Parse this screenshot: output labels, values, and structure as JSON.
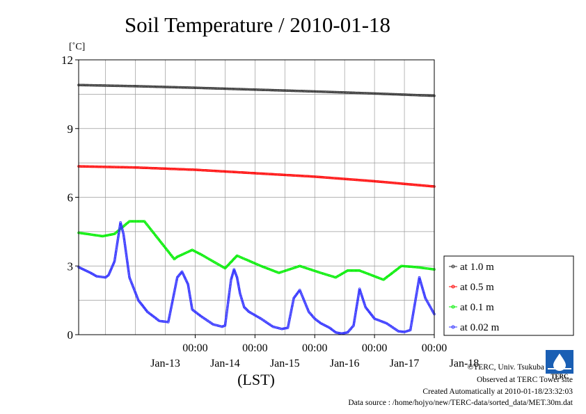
{
  "page_title": "Soil Temperature / 2010-01-18",
  "chart_data": {
    "type": "line",
    "title": "Soil Temperature / 2010-01-18",
    "ylabel": "[˚C]",
    "xlabel": "(LST)",
    "xlim": [
      -1.95,
      4.0
    ],
    "ylim": [
      0,
      12
    ],
    "yticks": [
      "0",
      "3",
      "6",
      "9",
      "12"
    ],
    "ytick_values": [
      0,
      3,
      6,
      9,
      12
    ],
    "xtick_time_labels": [
      "00:00",
      "00:00",
      "00:00",
      "00:00",
      "00:00"
    ],
    "xtick_date_labels": [
      "Jan-13",
      "Jan-14",
      "Jan-15",
      "Jan-16",
      "Jan-17",
      "Jan-18"
    ],
    "grid": true,
    "legend_position": "right",
    "series": [
      {
        "name": "at 1.0 m",
        "color": "#333333",
        "x": [
          -1.95,
          -1.0,
          0.0,
          1.0,
          2.0,
          3.0,
          4.0
        ],
        "y": [
          10.9,
          10.85,
          10.78,
          10.7,
          10.62,
          10.53,
          10.43
        ]
      },
      {
        "name": "at 0.5 m",
        "color": "#ff0000",
        "x": [
          -1.95,
          -1.0,
          0.0,
          1.0,
          2.0,
          3.0,
          4.0
        ],
        "y": [
          7.35,
          7.3,
          7.2,
          7.05,
          6.9,
          6.7,
          6.47
        ]
      },
      {
        "name": "at 0.1 m",
        "color": "#00ee00",
        "x": [
          -1.95,
          -1.55,
          -1.35,
          -1.1,
          -0.85,
          -0.35,
          -0.3,
          -0.05,
          0.1,
          0.5,
          0.7,
          1.1,
          1.4,
          1.75,
          2.1,
          2.35,
          2.55,
          2.75,
          3.15,
          3.45,
          3.7,
          4.0
        ],
        "y": [
          4.45,
          4.3,
          4.4,
          4.95,
          4.95,
          3.3,
          3.4,
          3.7,
          3.5,
          2.9,
          3.45,
          3.0,
          2.7,
          3.0,
          2.7,
          2.5,
          2.8,
          2.8,
          2.4,
          3.0,
          2.95,
          2.85
        ]
      },
      {
        "name": "at 0.02 m",
        "color": "#3333ff",
        "x": [
          -1.95,
          -1.75,
          -1.65,
          -1.5,
          -1.45,
          -1.35,
          -1.25,
          -1.2,
          -1.1,
          -0.95,
          -0.8,
          -0.6,
          -0.45,
          -0.3,
          -0.22,
          -0.12,
          -0.05,
          0.0,
          0.1,
          0.3,
          0.45,
          0.5,
          0.6,
          0.65,
          0.7,
          0.75,
          0.82,
          0.9,
          1.1,
          1.3,
          1.45,
          1.55,
          1.65,
          1.75,
          1.9,
          2.0,
          2.1,
          2.25,
          2.35,
          2.45,
          2.55,
          2.65,
          2.75,
          2.85,
          3.0,
          3.2,
          3.4,
          3.5,
          3.6,
          3.75,
          3.85,
          4.0
        ],
        "y": [
          2.95,
          2.7,
          2.55,
          2.5,
          2.6,
          3.2,
          4.9,
          4.4,
          2.5,
          1.5,
          1.0,
          0.6,
          0.55,
          2.5,
          2.75,
          2.2,
          1.1,
          1.0,
          0.8,
          0.45,
          0.35,
          0.4,
          2.4,
          2.85,
          2.5,
          1.8,
          1.2,
          1.0,
          0.7,
          0.35,
          0.25,
          0.3,
          1.6,
          1.95,
          1.0,
          0.7,
          0.5,
          0.3,
          0.1,
          0.05,
          0.1,
          0.4,
          2.0,
          1.2,
          0.7,
          0.5,
          0.15,
          0.12,
          0.2,
          2.5,
          1.6,
          0.9
        ]
      }
    ]
  },
  "credits": {
    "copyright": "©TERC, Univ. Tsukuba",
    "observed": "Observed at TERC Tower site",
    "created": "Created Automatically at 2010-01-18/23:32:03",
    "source": "Data source : /home/hojyo/new/TERC-data/sorted_data/MET.30m.dat"
  },
  "logo": {
    "text": "TERC",
    "color": "#1a5fb4",
    "icon": "water-drop-logo-icon"
  }
}
